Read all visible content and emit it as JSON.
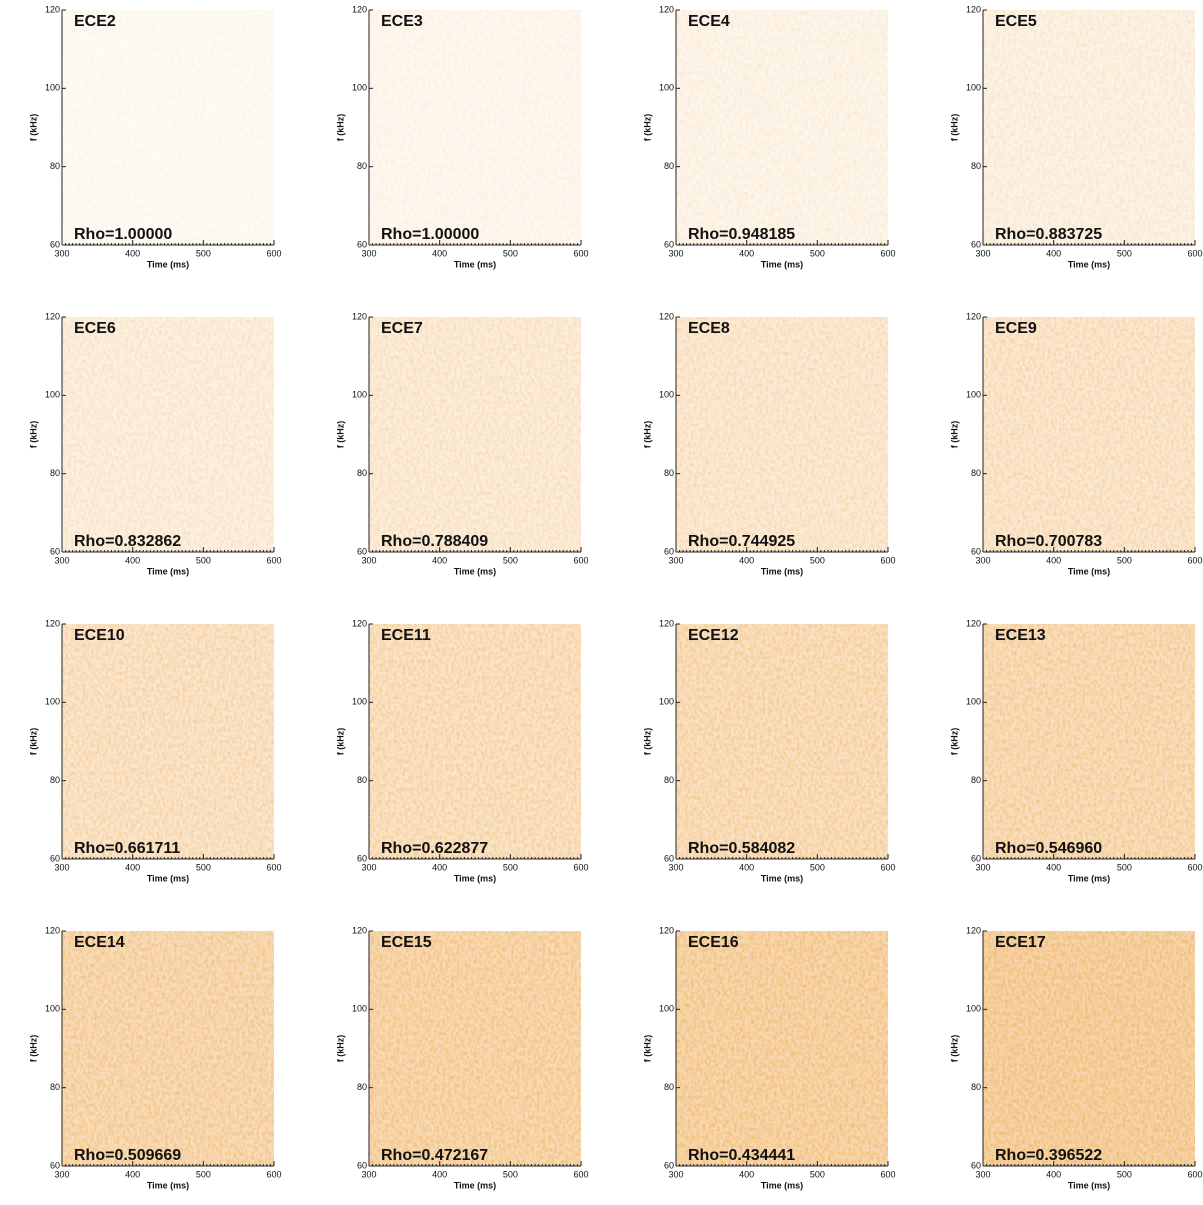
{
  "chart_data": [
    {
      "type": "spectrogram",
      "title": "ECE2",
      "annotation": "Rho=1.00000",
      "xlabel": "Time (ms)",
      "ylabel": "f (kHz)",
      "xlim": [
        300,
        600
      ],
      "ylim": [
        60,
        120
      ],
      "xticks": [
        300,
        400,
        500,
        600
      ],
      "yticks": [
        60,
        80,
        100,
        120
      ]
    },
    {
      "type": "spectrogram",
      "title": "ECE3",
      "annotation": "Rho=1.00000",
      "xlabel": "Time (ms)",
      "ylabel": "f (kHz)",
      "xlim": [
        300,
        600
      ],
      "ylim": [
        60,
        120
      ],
      "xticks": [
        300,
        400,
        500,
        600
      ],
      "yticks": [
        60,
        80,
        100,
        120
      ]
    },
    {
      "type": "spectrogram",
      "title": "ECE4",
      "annotation": "Rho=0.948185",
      "xlabel": "Time (ms)",
      "ylabel": "f (kHz)",
      "xlim": [
        300,
        600
      ],
      "ylim": [
        60,
        120
      ],
      "xticks": [
        300,
        400,
        500,
        600
      ],
      "yticks": [
        60,
        80,
        100,
        120
      ]
    },
    {
      "type": "spectrogram",
      "title": "ECE5",
      "annotation": "Rho=0.883725",
      "xlabel": "Time (ms)",
      "ylabel": "f (kHz)",
      "xlim": [
        300,
        600
      ],
      "ylim": [
        60,
        120
      ],
      "xticks": [
        300,
        400,
        500,
        600
      ],
      "yticks": [
        60,
        80,
        100,
        120
      ]
    },
    {
      "type": "spectrogram",
      "title": "ECE6",
      "annotation": "Rho=0.832862",
      "xlabel": "Time (ms)",
      "ylabel": "f (kHz)",
      "xlim": [
        300,
        600
      ],
      "ylim": [
        60,
        120
      ],
      "xticks": [
        300,
        400,
        500,
        600
      ],
      "yticks": [
        60,
        80,
        100,
        120
      ]
    },
    {
      "type": "spectrogram",
      "title": "ECE7",
      "annotation": "Rho=0.788409",
      "xlabel": "Time (ms)",
      "ylabel": "f (kHz)",
      "xlim": [
        300,
        600
      ],
      "ylim": [
        60,
        120
      ],
      "xticks": [
        300,
        400,
        500,
        600
      ],
      "yticks": [
        60,
        80,
        100,
        120
      ]
    },
    {
      "type": "spectrogram",
      "title": "ECE8",
      "annotation": "Rho=0.744925",
      "xlabel": "Time (ms)",
      "ylabel": "f (kHz)",
      "xlim": [
        300,
        600
      ],
      "ylim": [
        60,
        120
      ],
      "xticks": [
        300,
        400,
        500,
        600
      ],
      "yticks": [
        60,
        80,
        100,
        120
      ]
    },
    {
      "type": "spectrogram",
      "title": "ECE9",
      "annotation": "Rho=0.700783",
      "xlabel": "Time (ms)",
      "ylabel": "f (kHz)",
      "xlim": [
        300,
        600
      ],
      "ylim": [
        60,
        120
      ],
      "xticks": [
        300,
        400,
        500,
        600
      ],
      "yticks": [
        60,
        80,
        100,
        120
      ]
    },
    {
      "type": "spectrogram",
      "title": "ECE10",
      "annotation": "Rho=0.661711",
      "xlabel": "Time (ms)",
      "ylabel": "f (kHz)",
      "xlim": [
        300,
        600
      ],
      "ylim": [
        60,
        120
      ],
      "xticks": [
        300,
        400,
        500,
        600
      ],
      "yticks": [
        60,
        80,
        100,
        120
      ]
    },
    {
      "type": "spectrogram",
      "title": "ECE11",
      "annotation": "Rho=0.622877",
      "xlabel": "Time (ms)",
      "ylabel": "f (kHz)",
      "xlim": [
        300,
        600
      ],
      "ylim": [
        60,
        120
      ],
      "xticks": [
        300,
        400,
        500,
        600
      ],
      "yticks": [
        60,
        80,
        100,
        120
      ]
    },
    {
      "type": "spectrogram",
      "title": "ECE12",
      "annotation": "Rho=0.584082",
      "xlabel": "Time (ms)",
      "ylabel": "f (kHz)",
      "xlim": [
        300,
        600
      ],
      "ylim": [
        60,
        120
      ],
      "xticks": [
        300,
        400,
        500,
        600
      ],
      "yticks": [
        60,
        80,
        100,
        120
      ]
    },
    {
      "type": "spectrogram",
      "title": "ECE13",
      "annotation": "Rho=0.546960",
      "xlabel": "Time (ms)",
      "ylabel": "f (kHz)",
      "xlim": [
        300,
        600
      ],
      "ylim": [
        60,
        120
      ],
      "xticks": [
        300,
        400,
        500,
        600
      ],
      "yticks": [
        60,
        80,
        100,
        120
      ]
    },
    {
      "type": "spectrogram",
      "title": "ECE14",
      "annotation": "Rho=0.509669",
      "xlabel": "Time (ms)",
      "ylabel": "f (kHz)",
      "xlim": [
        300,
        600
      ],
      "ylim": [
        60,
        120
      ],
      "xticks": [
        300,
        400,
        500,
        600
      ],
      "yticks": [
        60,
        80,
        100,
        120
      ]
    },
    {
      "type": "spectrogram",
      "title": "ECE15",
      "annotation": "Rho=0.472167",
      "xlabel": "Time (ms)",
      "ylabel": "f (kHz)",
      "xlim": [
        300,
        600
      ],
      "ylim": [
        60,
        120
      ],
      "xticks": [
        300,
        400,
        500,
        600
      ],
      "yticks": [
        60,
        80,
        100,
        120
      ]
    },
    {
      "type": "spectrogram",
      "title": "ECE16",
      "annotation": "Rho=0.434441",
      "xlabel": "Time (ms)",
      "ylabel": "f (kHz)",
      "xlim": [
        300,
        600
      ],
      "ylim": [
        60,
        120
      ],
      "xticks": [
        300,
        400,
        500,
        600
      ],
      "yticks": [
        60,
        80,
        100,
        120
      ]
    },
    {
      "type": "spectrogram",
      "title": "ECE17",
      "annotation": "Rho=0.396522",
      "xlabel": "Time (ms)",
      "ylabel": "f (kHz)",
      "xlim": [
        300,
        600
      ],
      "ylim": [
        60,
        120
      ],
      "xticks": [
        300,
        400,
        500,
        600
      ],
      "yticks": [
        60,
        80,
        100,
        120
      ]
    }
  ]
}
